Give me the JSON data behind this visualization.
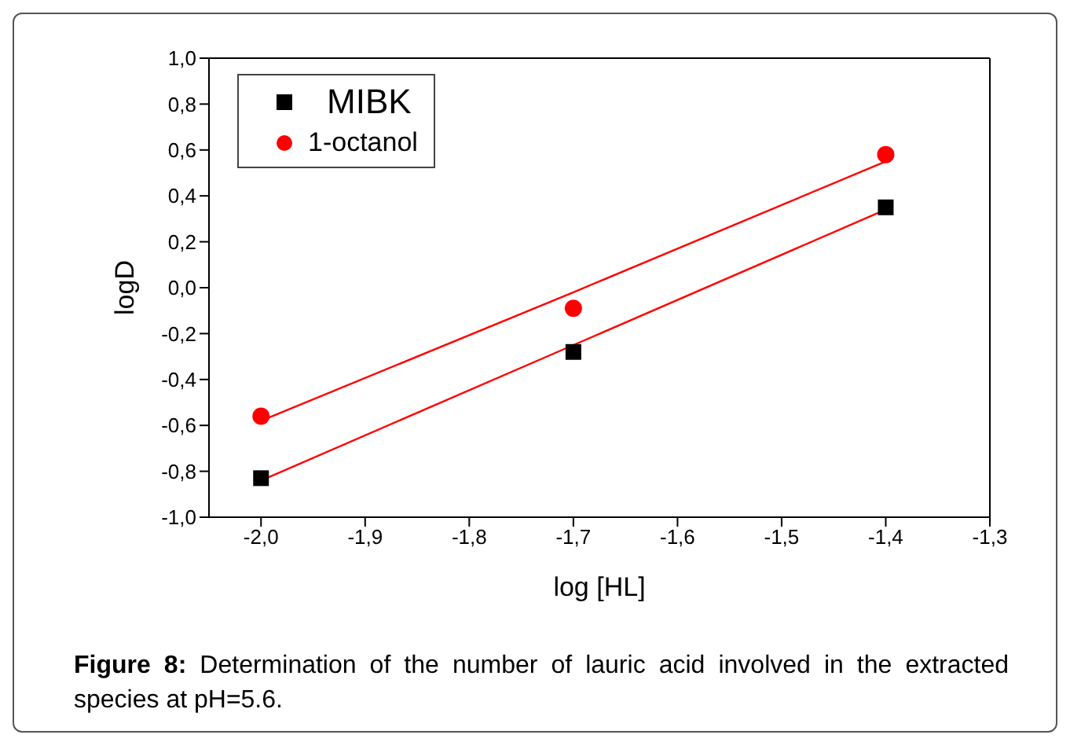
{
  "chart_data": {
    "type": "scatter",
    "xlabel": "log [HL]",
    "ylabel": "logD",
    "xlim": [
      -2.05,
      -1.3
    ],
    "xticks": [
      {
        "value": -2.0,
        "label": "-2,0"
      },
      {
        "value": -1.9,
        "label": "-1,9"
      },
      {
        "value": -1.8,
        "label": "-1,8"
      },
      {
        "value": -1.7,
        "label": "-1,7"
      },
      {
        "value": -1.6,
        "label": "-1,6"
      },
      {
        "value": -1.5,
        "label": "-1,5"
      },
      {
        "value": -1.4,
        "label": "-1,4"
      },
      {
        "value": -1.3,
        "label": "-1,3"
      }
    ],
    "ylim": [
      -1.0,
      1.0
    ],
    "yticks": [
      {
        "value": -1.0,
        "label": "-1,0"
      },
      {
        "value": -0.8,
        "label": "-0,8"
      },
      {
        "value": -0.6,
        "label": "-0,6"
      },
      {
        "value": -0.4,
        "label": "-0,4"
      },
      {
        "value": -0.2,
        "label": "-0,2"
      },
      {
        "value": 0.0,
        "label": "0,0"
      },
      {
        "value": 0.2,
        "label": "0,2"
      },
      {
        "value": 0.4,
        "label": "0,4"
      },
      {
        "value": 0.6,
        "label": "0,6"
      },
      {
        "value": 0.8,
        "label": "0,8"
      },
      {
        "value": 1.0,
        "label": "1,0"
      }
    ],
    "x": [
      -2.0,
      -1.7,
      -1.4
    ],
    "legend": "top left",
    "series": [
      {
        "name": "MIBK",
        "color": "#000000",
        "marker": "square",
        "values": [
          -0.83,
          -0.28,
          0.35
        ]
      },
      {
        "name": "1-octanol",
        "color": "#ff0000",
        "marker": "circle",
        "values": [
          -0.56,
          -0.09,
          0.58
        ]
      },
      {
        "type": "line",
        "color": "#ff0000",
        "marker": "none",
        "values": [
          -0.84,
          -0.25,
          0.34
        ]
      },
      {
        "type": "line",
        "color": "#ff0000",
        "marker": "none",
        "values": [
          -0.58,
          -0.02,
          0.55
        ]
      }
    ],
    "annotations": [
      "Figure 8: Determination of the number of lauric acid involved in the extracted species at pH=5.6."
    ]
  }
}
